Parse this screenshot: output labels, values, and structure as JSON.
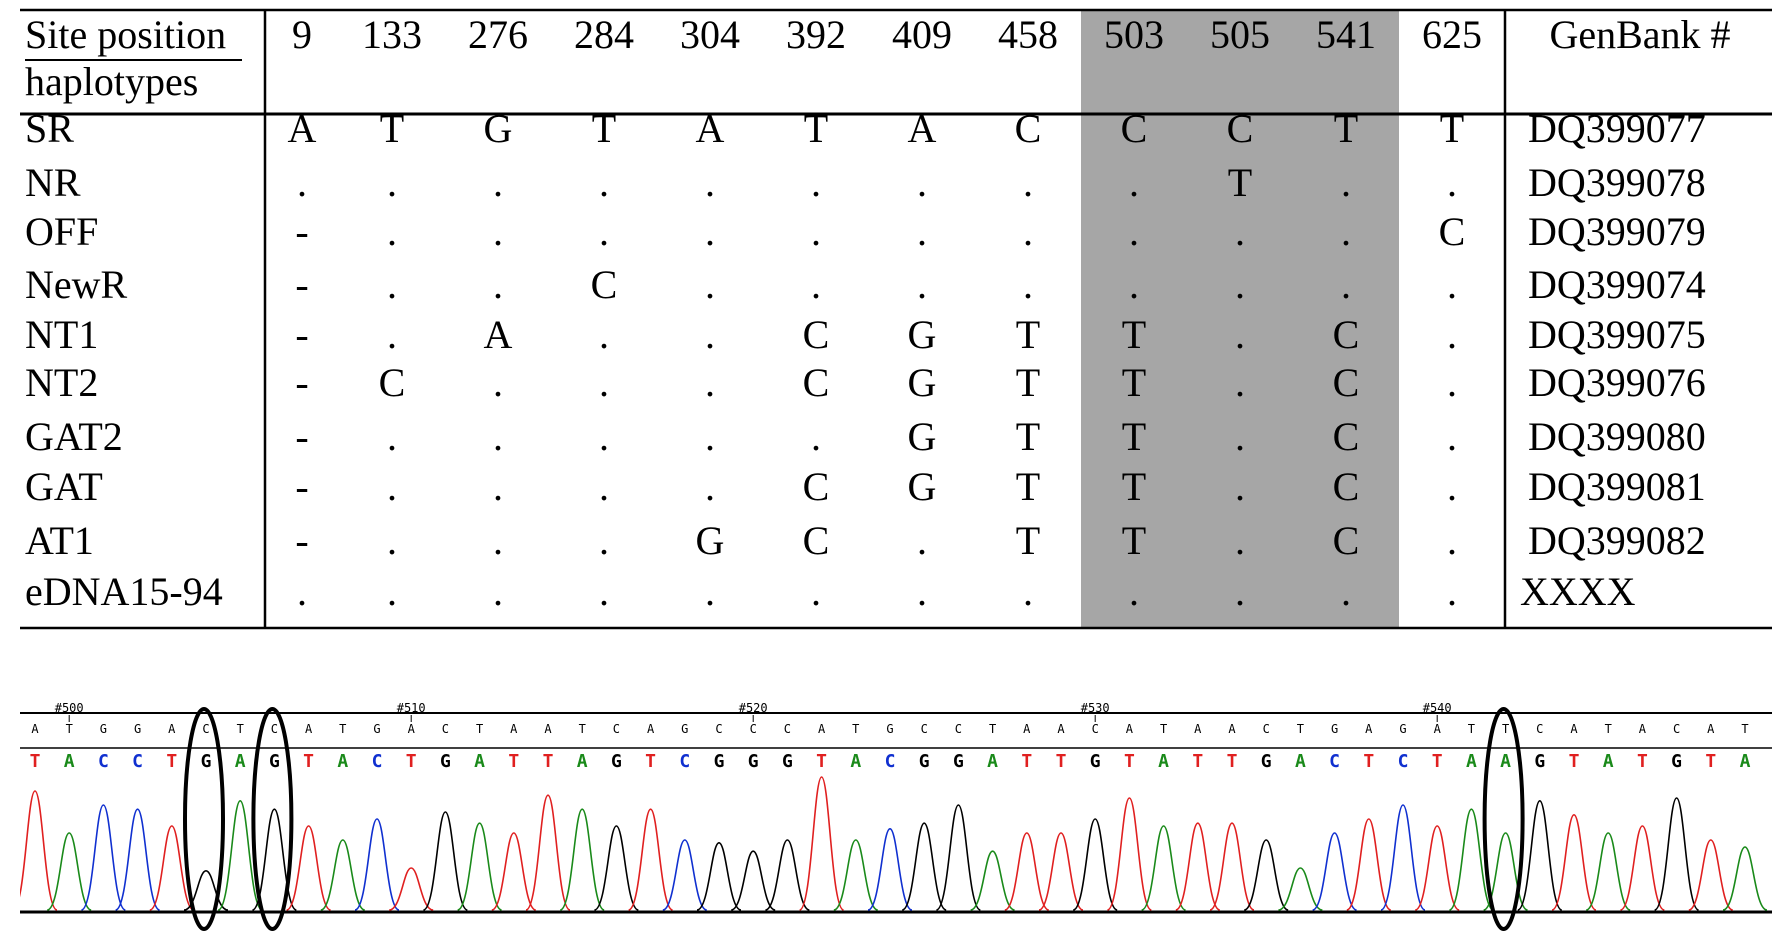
{
  "table": {
    "header_site_label": "Site position",
    "header_hap_label": "haplotypes",
    "genbank_header": "GenBank #",
    "positions": [
      "9",
      "133",
      "276",
      "284",
      "304",
      "392",
      "409",
      "458",
      "503",
      "505",
      "541",
      "625"
    ],
    "highlighted_positions": [
      "503",
      "505",
      "541"
    ],
    "highlight_color": "#a6a6a6",
    "rows": [
      {
        "name": "SR",
        "cells": [
          "A",
          "T",
          "G",
          "T",
          "A",
          "T",
          "A",
          "C",
          "C",
          "C",
          "T",
          "T"
        ],
        "genbank": "DQ399077"
      },
      {
        "name": "NR",
        "cells": [
          ".",
          ".",
          ".",
          ".",
          ".",
          ".",
          ".",
          ".",
          ".",
          "T",
          ".",
          "."
        ],
        "genbank": "DQ399078"
      },
      {
        "name": "OFF",
        "cells": [
          "-",
          ".",
          ".",
          ".",
          ".",
          ".",
          ".",
          ".",
          ".",
          ".",
          ".",
          "C"
        ],
        "genbank": "DQ399079"
      },
      {
        "name": "NewR",
        "cells": [
          "-",
          ".",
          ".",
          "C",
          ".",
          ".",
          ".",
          ".",
          ".",
          ".",
          ".",
          "."
        ],
        "genbank": "DQ399074"
      },
      {
        "name": "NT1",
        "cells": [
          "-",
          ".",
          "A",
          ".",
          ".",
          "C",
          "G",
          "T",
          "T",
          ".",
          "C",
          "."
        ],
        "genbank": "DQ399075"
      },
      {
        "name": "NT2",
        "cells": [
          "-",
          "C",
          ".",
          ".",
          ".",
          "C",
          "G",
          "T",
          "T",
          ".",
          "C",
          "."
        ],
        "genbank": "DQ399076"
      },
      {
        "name": "GAT2",
        "cells": [
          "-",
          ".",
          ".",
          ".",
          ".",
          ".",
          "G",
          "T",
          "T",
          ".",
          "C",
          "."
        ],
        "genbank": "DQ399080"
      },
      {
        "name": "GAT",
        "cells": [
          "-",
          ".",
          ".",
          ".",
          ".",
          "C",
          "G",
          "T",
          "T",
          ".",
          "C",
          "."
        ],
        "genbank": "DQ399081"
      },
      {
        "name": "AT1",
        "cells": [
          "-",
          ".",
          ".",
          ".",
          "G",
          "C",
          ".",
          "T",
          "T",
          ".",
          "C",
          "."
        ],
        "genbank": "DQ399082"
      },
      {
        "name": "eDNA15-94",
        "cells": [
          ".",
          ".",
          ".",
          ".",
          ".",
          ".",
          ".",
          ".",
          ".",
          ".",
          ".",
          "."
        ],
        "genbank": "XXXX"
      }
    ]
  },
  "chromatogram": {
    "top_sequence": [
      "A",
      "T",
      "G",
      "G",
      "A",
      "C",
      "T",
      "C",
      "A",
      "T",
      "G",
      "A",
      "C",
      "T",
      "A",
      "A",
      "T",
      "C",
      "A",
      "G",
      "C",
      "C",
      "C",
      "A",
      "T",
      "G",
      "C",
      "C",
      "T",
      "A",
      "A",
      "C",
      "A",
      "T",
      "A",
      "A",
      "C",
      "T",
      "G",
      "A",
      "G",
      "A",
      "T",
      "T",
      "C",
      "A",
      "T",
      "A",
      "C",
      "A",
      "T"
    ],
    "complement_sequence": [
      "T",
      "A",
      "C",
      "C",
      "T",
      "G",
      "A",
      "G",
      "T",
      "A",
      "C",
      "T",
      "G",
      "A",
      "T",
      "T",
      "A",
      "G",
      "T",
      "C",
      "G",
      "G",
      "G",
      "T",
      "A",
      "C",
      "G",
      "G",
      "A",
      "T",
      "T",
      "G",
      "T",
      "A",
      "T",
      "T",
      "G",
      "A",
      "C",
      "T",
      "C",
      "T",
      "A",
      "A",
      "G",
      "T",
      "A",
      "T",
      "G",
      "T",
      "A"
    ],
    "position_markers": [
      {
        "label": "#500",
        "index": 1
      },
      {
        "label": "#510",
        "index": 11
      },
      {
        "label": "#520",
        "index": 21
      },
      {
        "label": "#530",
        "index": 31
      },
      {
        "label": "#540",
        "index": 41
      }
    ],
    "circled_indices": [
      5,
      7,
      43
    ],
    "base_colors": {
      "A": "#1a8a1a",
      "T": "#e02020",
      "G": "#000000",
      "C": "#1030d0"
    },
    "peak_heights": [
      0.85,
      0.55,
      0.75,
      0.72,
      0.6,
      0.28,
      0.78,
      0.72,
      0.6,
      0.5,
      0.65,
      0.3,
      0.7,
      0.62,
      0.55,
      0.82,
      0.72,
      0.6,
      0.72,
      0.5,
      0.48,
      0.42,
      0.5,
      0.95,
      0.5,
      0.58,
      0.62,
      0.75,
      0.42,
      0.55,
      0.55,
      0.65,
      0.8,
      0.6,
      0.62,
      0.62,
      0.5,
      0.3,
      0.55,
      0.65,
      0.75,
      0.6,
      0.72,
      0.55,
      0.78,
      0.68,
      0.55,
      0.6,
      0.8,
      0.5,
      0.45
    ]
  }
}
